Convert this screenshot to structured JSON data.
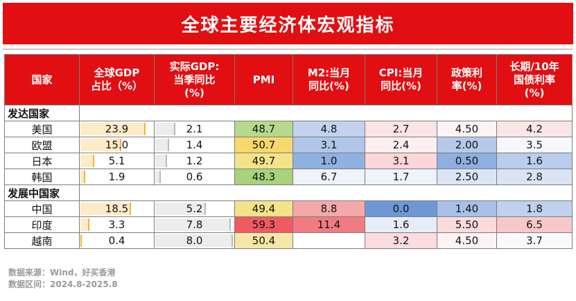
{
  "title": "全球主要经济体宏观指标",
  "headers": [
    "国家",
    "全球GDP\n占比（%）",
    "实际GDP:\n当季同比\n(%)",
    "PMI",
    "M2:当月\n同比(%)",
    "CPI:当月\n同比(%)",
    "政策利\n率(%)",
    "长期/10年\n国债利率\n(%)"
  ],
  "groups": [
    {
      "name": "发达国家",
      "rows": [
        {
          "country": "美国",
          "gdp_share": "23.9",
          "real_gdp": "2.1",
          "pmi": "48.7",
          "m2": "4.8",
          "cpi": "2.7",
          "policy_rate": "4.50",
          "bond_10y": "4.2"
        },
        {
          "country": "欧盟",
          "gdp_share": "15.0",
          "real_gdp": "1.4",
          "pmi": "50.7",
          "m2": "3.1",
          "cpi": "2.4",
          "policy_rate": "2.00",
          "bond_10y": "3.5"
        },
        {
          "country": "日本",
          "gdp_share": "5.1",
          "real_gdp": "1.2",
          "pmi": "49.7",
          "m2": "1.0",
          "cpi": "3.1",
          "policy_rate": "0.50",
          "bond_10y": "1.6"
        },
        {
          "country": "韩国",
          "gdp_share": "1.9",
          "real_gdp": "0.6",
          "pmi": "48.3",
          "m2": "6.7",
          "cpi": "1.7",
          "policy_rate": "2.50",
          "bond_10y": "2.8"
        }
      ]
    },
    {
      "name": "发展中国家",
      "rows": [
        {
          "country": "中国",
          "gdp_share": "18.5",
          "real_gdp": "5.2",
          "pmi": "49.4",
          "m2": "8.8",
          "cpi": "0.0",
          "policy_rate": "1.40",
          "bond_10y": "1.8"
        },
        {
          "country": "印度",
          "gdp_share": "3.3",
          "real_gdp": "7.8",
          "pmi": "59.3",
          "m2": "11.4",
          "cpi": "1.6",
          "policy_rate": "5.50",
          "bond_10y": "6.5"
        },
        {
          "country": "越南",
          "gdp_share": "0.4",
          "real_gdp": "8.0",
          "pmi": "50.4",
          "m2": "",
          "cpi": "3.2",
          "policy_rate": "4.50",
          "bond_10y": "3.7"
        }
      ]
    }
  ],
  "cell_colors": {
    "pmi": [
      "#b7d98b",
      "#f6d86e",
      "#f3e48a",
      "#a8d27b",
      "#f3e48a",
      "#ef5a63",
      "#f6e7a8"
    ],
    "m2": [
      "#c3d3ee",
      "#afc6e9",
      "#8fb1e1",
      "#f0f2fa",
      "#f3a9aa",
      "#f17b82",
      "#ffffff"
    ],
    "cpi": [
      "#fbe4e5",
      "#fdeff0",
      "#fbd5d7",
      "#eef2fb",
      "#6f97d6",
      "#e6edf8",
      "#fcdcdd"
    ],
    "policy_rate": [
      "#fdf3f4",
      "#b5c9ea",
      "#8eafdf",
      "#dbe5f5",
      "#a8c0e7",
      "#fadadb",
      "#fdf3f4"
    ],
    "bond_10y": [
      "#fae6e7",
      "#f5f7fc",
      "#b9cdec",
      "#dbe4f4",
      "#bfd1ed",
      "#f7c8ca",
      "#f9f9fc"
    ]
  },
  "footer": {
    "source": "数据来源：Wind，好买香港",
    "range": "数据区间：2024.8-2025.8"
  }
}
